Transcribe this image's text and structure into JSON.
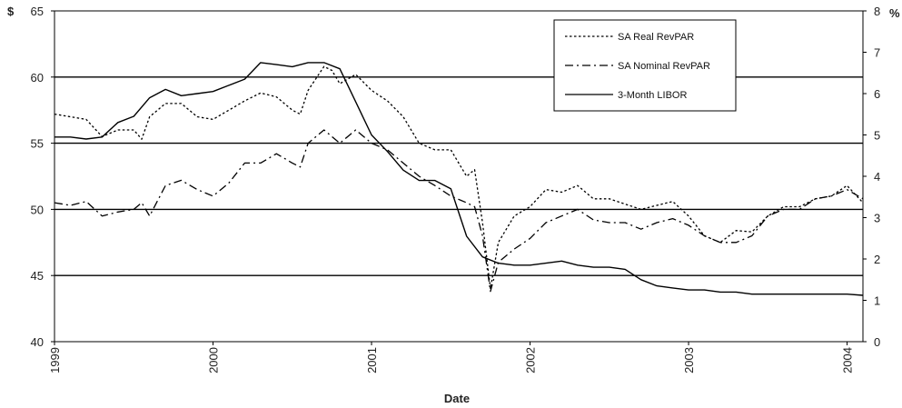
{
  "chart_data": {
    "type": "line",
    "xlabel": "Date",
    "y_left_unit": "$",
    "y_right_unit": "%",
    "ylim_left": [
      40,
      65
    ],
    "ylim_right": [
      0,
      8
    ],
    "xlim": [
      1999.0,
      2004.1
    ],
    "y_left_ticks": [
      "40",
      "45",
      "50",
      "55",
      "60",
      "65"
    ],
    "y_right_ticks": [
      "0",
      "1",
      "2",
      "3",
      "4",
      "5",
      "6",
      "7",
      "8"
    ],
    "x_ticks": [
      "1999",
      "2000",
      "2001",
      "2002",
      "2003",
      "2004"
    ],
    "grid": "horizontal-major",
    "legend_position": "top-right",
    "series": [
      {
        "name": "SA Real RevPAR",
        "axis": "left",
        "style": "dotted",
        "x": [
          1999.0,
          1999.1,
          1999.2,
          1999.3,
          1999.4,
          1999.5,
          1999.55,
          1999.6,
          1999.7,
          1999.8,
          1999.9,
          2000.0,
          2000.1,
          2000.2,
          2000.3,
          2000.4,
          2000.5,
          2000.55,
          2000.6,
          2000.7,
          2000.75,
          2000.8,
          2000.9,
          2001.0,
          2001.1,
          2001.2,
          2001.3,
          2001.4,
          2001.5,
          2001.6,
          2001.65,
          2001.7,
          2001.75,
          2001.8,
          2001.9,
          2002.0,
          2002.1,
          2002.2,
          2002.3,
          2002.4,
          2002.5,
          2002.6,
          2002.7,
          2002.8,
          2002.9,
          2003.0,
          2003.1,
          2003.2,
          2003.3,
          2003.4,
          2003.5,
          2003.6,
          2003.7,
          2003.8,
          2003.9,
          2004.0,
          2004.1
        ],
        "values": [
          57.2,
          57.0,
          56.8,
          55.5,
          56.0,
          56.0,
          55.3,
          57.0,
          58.0,
          58.0,
          57.0,
          56.8,
          57.5,
          58.2,
          58.8,
          58.5,
          57.5,
          57.2,
          59.0,
          60.8,
          60.5,
          59.5,
          60.2,
          59.0,
          58.2,
          57.0,
          55.0,
          54.5,
          54.5,
          52.5,
          53.0,
          49.0,
          44.0,
          47.5,
          49.5,
          50.2,
          51.5,
          51.3,
          51.8,
          50.8,
          50.8,
          50.4,
          50.0,
          50.3,
          50.6,
          49.5,
          48.0,
          47.5,
          48.4,
          48.3,
          49.5,
          50.2,
          50.2,
          50.8,
          51.0,
          51.8,
          50.5
        ]
      },
      {
        "name": "SA Nominal RevPAR",
        "axis": "left",
        "style": "dash-dot",
        "x": [
          1999.0,
          1999.1,
          1999.2,
          1999.3,
          1999.4,
          1999.5,
          1999.55,
          1999.6,
          1999.7,
          1999.8,
          1999.9,
          2000.0,
          2000.1,
          2000.2,
          2000.3,
          2000.4,
          2000.5,
          2000.55,
          2000.6,
          2000.7,
          2000.75,
          2000.8,
          2000.9,
          2001.0,
          2001.1,
          2001.2,
          2001.3,
          2001.4,
          2001.5,
          2001.6,
          2001.65,
          2001.7,
          2001.75,
          2001.8,
          2001.9,
          2002.0,
          2002.1,
          2002.2,
          2002.3,
          2002.4,
          2002.5,
          2002.6,
          2002.7,
          2002.8,
          2002.9,
          2003.0,
          2003.1,
          2003.2,
          2003.3,
          2003.4,
          2003.5,
          2003.6,
          2003.7,
          2003.8,
          2003.9,
          2004.0,
          2004.1
        ],
        "values": [
          50.5,
          50.3,
          50.6,
          49.5,
          49.8,
          50.0,
          50.5,
          49.5,
          51.8,
          52.2,
          51.5,
          51.0,
          52.0,
          53.5,
          53.5,
          54.2,
          53.5,
          53.2,
          55.0,
          56.0,
          55.5,
          55.0,
          56.0,
          55.0,
          54.5,
          53.5,
          52.5,
          51.8,
          51.0,
          50.5,
          50.2,
          48.0,
          43.8,
          46.0,
          47.0,
          47.8,
          49.0,
          49.5,
          50.0,
          49.2,
          49.0,
          49.0,
          48.5,
          49.0,
          49.3,
          48.8,
          48.0,
          47.5,
          47.5,
          48.0,
          49.5,
          50.0,
          50.0,
          50.8,
          51.0,
          51.5,
          50.8
        ]
      },
      {
        "name": "3-Month LIBOR",
        "axis": "right",
        "style": "solid",
        "x": [
          1999.0,
          1999.1,
          1999.2,
          1999.3,
          1999.4,
          1999.5,
          1999.6,
          1999.7,
          1999.8,
          1999.9,
          2000.0,
          2000.1,
          2000.2,
          2000.3,
          2000.4,
          2000.5,
          2000.6,
          2000.7,
          2000.8,
          2000.9,
          2001.0,
          2001.1,
          2001.2,
          2001.3,
          2001.4,
          2001.5,
          2001.6,
          2001.7,
          2001.8,
          2001.9,
          2002.0,
          2002.1,
          2002.2,
          2002.3,
          2002.4,
          2002.5,
          2002.6,
          2002.7,
          2002.8,
          2002.9,
          2003.0,
          2003.1,
          2003.2,
          2003.3,
          2003.4,
          2003.5,
          2003.6,
          2003.7,
          2003.8,
          2003.9,
          2004.0,
          2004.1
        ],
        "values": [
          4.95,
          4.95,
          4.9,
          4.95,
          5.3,
          5.45,
          5.9,
          6.1,
          5.95,
          6.0,
          6.05,
          6.2,
          6.35,
          6.75,
          6.7,
          6.65,
          6.75,
          6.75,
          6.6,
          5.8,
          5.0,
          4.6,
          4.15,
          3.9,
          3.9,
          3.7,
          2.55,
          2.05,
          1.9,
          1.85,
          1.85,
          1.9,
          1.95,
          1.85,
          1.8,
          1.8,
          1.75,
          1.5,
          1.35,
          1.3,
          1.25,
          1.25,
          1.2,
          1.2,
          1.15,
          1.15,
          1.15,
          1.15,
          1.15,
          1.15,
          1.15,
          1.12
        ]
      }
    ]
  }
}
